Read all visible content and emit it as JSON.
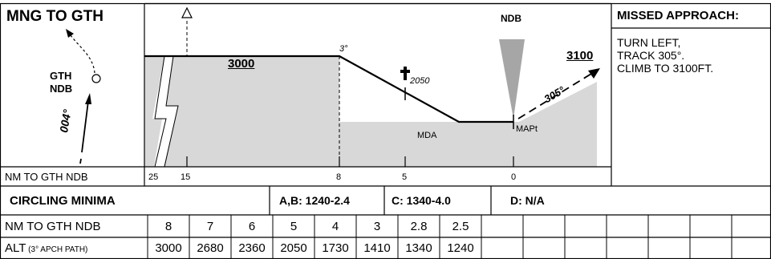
{
  "route_title": "MNG TO GTH",
  "missed_approach": {
    "title": "MISSED APPROACH:",
    "lines": [
      "TURN LEFT,",
      "TRACK 305°.",
      "CLIMB TO 3100FT."
    ]
  },
  "plan": {
    "navaid_label_line1": "GTH",
    "navaid_label_line2": "NDB",
    "inbound_track": "004°"
  },
  "profile": {
    "initial_altitude": "3000",
    "missed_altitude": "3100",
    "glide_angle": "3°",
    "fix_altitude": "2050",
    "mda_label": "MDA",
    "mapt_label": "MAPt",
    "ndb_label": "NDB",
    "missed_track": "305°",
    "distance_row_label": "NM TO GTH NDB",
    "distance_marks": [
      "25",
      "15",
      "8",
      "5",
      "0"
    ]
  },
  "circling": {
    "title": "CIRCLING MINIMA",
    "ab": "A,B: 1240-2.4",
    "c": "C: 1340-4.0",
    "d": "D:  N/A"
  },
  "table": {
    "row1_label": "NM TO GTH NDB",
    "row2_label_main": "ALT",
    "row2_label_note": " (3° APCH PATH)",
    "distances": [
      "8",
      "7",
      "6",
      "5",
      "4",
      "3",
      "2.8",
      "2.5"
    ],
    "altitudes": [
      "3000",
      "2680",
      "2360",
      "2050",
      "1730",
      "1410",
      "1340",
      "1240"
    ]
  },
  "colors": {
    "terrain": "#d8d8d8",
    "ink": "#000000",
    "ndb_cone": "#a6a6a6"
  }
}
